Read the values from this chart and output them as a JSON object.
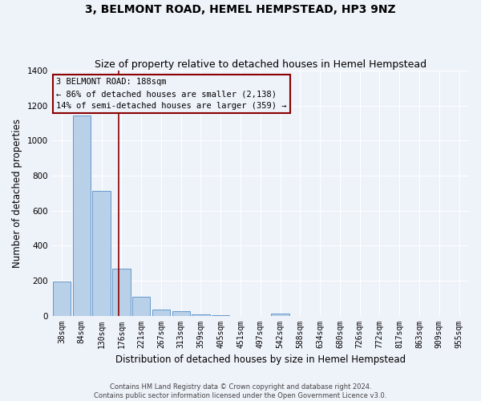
{
  "title": "3, BELMONT ROAD, HEMEL HEMPSTEAD, HP3 9NZ",
  "subtitle": "Size of property relative to detached houses in Hemel Hempstead",
  "xlabel": "Distribution of detached houses by size in Hemel Hempstead",
  "ylabel": "Number of detached properties",
  "bar_labels": [
    "38sqm",
    "84sqm",
    "130sqm",
    "176sqm",
    "221sqm",
    "267sqm",
    "313sqm",
    "359sqm",
    "405sqm",
    "451sqm",
    "497sqm",
    "542sqm",
    "588sqm",
    "634sqm",
    "680sqm",
    "726sqm",
    "772sqm",
    "817sqm",
    "863sqm",
    "909sqm",
    "955sqm"
  ],
  "bar_values": [
    193,
    1143,
    712,
    270,
    110,
    35,
    25,
    5,
    3,
    0,
    0,
    14,
    0,
    0,
    0,
    0,
    0,
    0,
    0,
    0,
    0
  ],
  "bar_color": "#b8d0e8",
  "bar_edge_color": "#6699cc",
  "ylim": [
    0,
    1400
  ],
  "yticks": [
    0,
    200,
    400,
    600,
    800,
    1000,
    1200,
    1400
  ],
  "property_line_x": 2.85,
  "property_line_color": "#8b0000",
  "annotation_box_text": "3 BELMONT ROAD: 188sqm\n← 86% of detached houses are smaller (2,138)\n14% of semi-detached houses are larger (359) →",
  "footer_text": "Contains HM Land Registry data © Crown copyright and database right 2024.\nContains public sector information licensed under the Open Government Licence v3.0.",
  "bg_color": "#eef2f9",
  "grid_color": "#ffffff",
  "title_fontsize": 10,
  "subtitle_fontsize": 9,
  "label_fontsize": 8.5,
  "tick_fontsize": 7,
  "annotation_fontsize": 7.5,
  "footer_fontsize": 6
}
